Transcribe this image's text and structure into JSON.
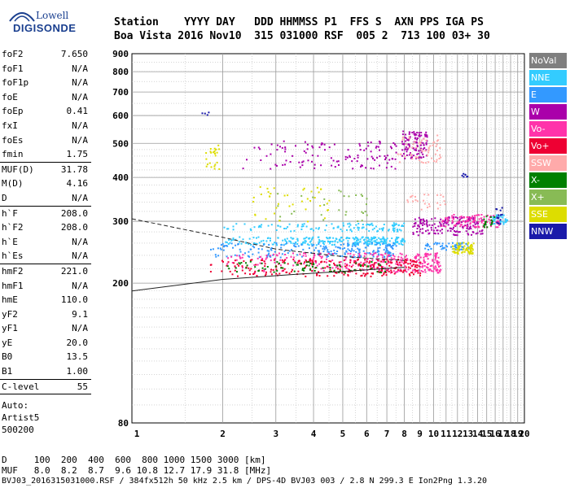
{
  "logo": {
    "top": "Lowell",
    "bottom": "DIGISONDE"
  },
  "header": {
    "labels": "Station    YYYY DAY   DDD HHMMSS P1  FFS S  AXN PPS IGA PS",
    "values": "Boa Vista 2016 Nov10  315 031000 RSF  005 2  713 100 03+ 30"
  },
  "params": [
    {
      "group": [
        {
          "label": "foF2",
          "value": "7.650"
        },
        {
          "label": "foF1",
          "value": "N/A"
        },
        {
          "label": "foF1p",
          "value": "N/A"
        },
        {
          "label": "foE",
          "value": "N/A"
        },
        {
          "label": "foEp",
          "value": "0.41"
        },
        {
          "label": "fxI",
          "value": "N/A"
        },
        {
          "label": "foEs",
          "value": "N/A"
        },
        {
          "label": "fmin",
          "value": "1.75"
        }
      ]
    },
    {
      "group": [
        {
          "label": "MUF(D)",
          "value": "31.78"
        },
        {
          "label": "M(D)",
          "value": "4.16"
        },
        {
          "label": "D",
          "value": "N/A"
        }
      ]
    },
    {
      "group": [
        {
          "label": "h`F",
          "value": "208.0"
        },
        {
          "label": "h`F2",
          "value": "208.0"
        },
        {
          "label": "h`E",
          "value": "N/A"
        },
        {
          "label": "h`Es",
          "value": "N/A"
        }
      ]
    },
    {
      "group": [
        {
          "label": "hmF2",
          "value": "221.0"
        },
        {
          "label": "hmF1",
          "value": "N/A"
        },
        {
          "label": "hmE",
          "value": "110.0"
        },
        {
          "label": "yF2",
          "value": "9.1"
        },
        {
          "label": "yF1",
          "value": "N/A"
        },
        {
          "label": "yE",
          "value": "20.0"
        },
        {
          "label": "B0",
          "value": "13.5"
        },
        {
          "label": "B1",
          "value": "1.00"
        }
      ]
    },
    {
      "group": [
        {
          "label": "C-level",
          "value": "55"
        }
      ]
    }
  ],
  "auto": [
    "Auto:",
    "Artist5",
    "500200"
  ],
  "legend": [
    {
      "label": "NoVal",
      "color": "#7f7f7f"
    },
    {
      "label": "NNE",
      "color": "#33ccff"
    },
    {
      "label": "E",
      "color": "#3399ff"
    },
    {
      "label": "W",
      "color": "#aa00aa"
    },
    {
      "label": "Vo-",
      "color": "#ff33aa"
    },
    {
      "label": "Vo+",
      "color": "#ee0033"
    },
    {
      "label": "SSW",
      "color": "#ffaaaa"
    },
    {
      "label": "X-",
      "color": "#008000"
    },
    {
      "label": "X+",
      "color": "#88bb55"
    },
    {
      "label": "SSE",
      "color": "#dddd00"
    },
    {
      "label": "NNW",
      "color": "#1a1aaa"
    }
  ],
  "footer": {
    "line1": "D     100  200  400  600  800 1000 1500 3000 [km]",
    "line2": "MUF   8.0  8.2  8.7  9.6 10.8 12.7 17.9 31.8 [MHz]",
    "line3": "BVJ03_2016315031000.RSF / 384fx512h 50 kHz 2.5 km / DPS-4D BVJ03 003 / 2.8 N 299.3 E Ion2Png 1.3.20"
  },
  "chart_data": {
    "type": "scatter",
    "xlim": [
      1,
      20
    ],
    "ylim": [
      80,
      900
    ],
    "x_ticks": [
      "1",
      "2",
      "3",
      "4",
      "5",
      "6",
      "7",
      "8",
      "9",
      "10",
      "11",
      "12",
      "13",
      "14",
      "15",
      "16",
      "17",
      "18",
      "19",
      "20"
    ],
    "y_ticks": [
      "80",
      "200",
      "300",
      "400",
      "500",
      "600",
      "700",
      "800",
      "900"
    ],
    "grid": true,
    "legend_placement": "right",
    "series": [
      {
        "name": "NNE",
        "color": "#33ccff",
        "clusters": [
          {
            "x": [
              2.0,
              8.0
            ],
            "y": [
              258,
              272
            ],
            "n": 260
          },
          {
            "x": [
              2.0,
              8.0
            ],
            "y": [
              282,
              298
            ],
            "n": 120
          },
          {
            "x": [
              15.5,
              17.5
            ],
            "y": [
              296,
              316
            ],
            "n": 40
          }
        ]
      },
      {
        "name": "E",
        "color": "#3399ff",
        "clusters": [
          {
            "x": [
              1.8,
              7.5
            ],
            "y": [
              238,
              262
            ],
            "n": 220
          },
          {
            "x": [
              9.0,
              13.0
            ],
            "y": [
              250,
              262
            ],
            "n": 60
          }
        ]
      },
      {
        "name": "W",
        "color": "#aa00aa",
        "clusters": [
          {
            "x": [
              2.3,
              7.5
            ],
            "y": [
              425,
              510
            ],
            "n": 120
          },
          {
            "x": [
              7.8,
              9.5
            ],
            "y": [
              455,
              545
            ],
            "n": 110
          },
          {
            "x": [
              8.5,
              14.5
            ],
            "y": [
              275,
              310
            ],
            "n": 160
          }
        ]
      },
      {
        "name": "Vo-",
        "color": "#ff33aa",
        "clusters": [
          {
            "x": [
              2.0,
              10.5
            ],
            "y": [
              215,
              245
            ],
            "n": 320
          },
          {
            "x": [
              10.5,
              16.5
            ],
            "y": [
              290,
              315
            ],
            "n": 90
          }
        ]
      },
      {
        "name": "Vo+",
        "color": "#ee0033",
        "clusters": [
          {
            "x": [
              1.8,
              9.0
            ],
            "y": [
              210,
              235
            ],
            "n": 260
          }
        ]
      },
      {
        "name": "SSW",
        "color": "#ffaaaa",
        "clusters": [
          {
            "x": [
              7.5,
              10.5
            ],
            "y": [
              440,
              530
            ],
            "n": 60
          },
          {
            "x": [
              8.0,
              11.0
            ],
            "y": [
              320,
              360
            ],
            "n": 25
          }
        ]
      },
      {
        "name": "X-",
        "color": "#008000",
        "clusters": [
          {
            "x": [
              2.0,
              7.0
            ],
            "y": [
              215,
              232
            ],
            "n": 80
          },
          {
            "x": [
              14.5,
              16.0
            ],
            "y": [
              290,
              312
            ],
            "n": 18
          }
        ]
      },
      {
        "name": "X+",
        "color": "#88bb55",
        "clusters": [
          {
            "x": [
              3.0,
              6.0
            ],
            "y": [
              300,
              370
            ],
            "n": 30
          }
        ]
      },
      {
        "name": "SSE",
        "color": "#dddd00",
        "clusters": [
          {
            "x": [
              1.75,
              1.95
            ],
            "y": [
              420,
              500
            ],
            "n": 25
          },
          {
            "x": [
              2.5,
              4.5
            ],
            "y": [
              300,
              380
            ],
            "n": 40
          },
          {
            "x": [
              11.5,
              13.5
            ],
            "y": [
              243,
              262
            ],
            "n": 70
          }
        ]
      },
      {
        "name": "NNW",
        "color": "#1a1aaa",
        "clusters": [
          {
            "x": [
              1.7,
              1.8
            ],
            "y": [
              595,
              630
            ],
            "n": 4
          },
          {
            "x": [
              12.2,
              12.9
            ],
            "y": [
              403,
              412
            ],
            "n": 8
          },
          {
            "x": [
              16.0,
              16.8
            ],
            "y": [
              296,
              330
            ],
            "n": 14
          }
        ]
      }
    ],
    "profile_lines": [
      {
        "name": "profile-upper",
        "points": [
          [
            1.0,
            305
          ],
          [
            2.0,
            270
          ],
          [
            3.0,
            250
          ],
          [
            5.0,
            238
          ],
          [
            8.0,
            232
          ]
        ]
      },
      {
        "name": "profile-lower",
        "points": [
          [
            1.0,
            190
          ],
          [
            2.0,
            205
          ],
          [
            3.5,
            212
          ],
          [
            5.5,
            217
          ],
          [
            8.0,
            222
          ]
        ]
      }
    ]
  }
}
